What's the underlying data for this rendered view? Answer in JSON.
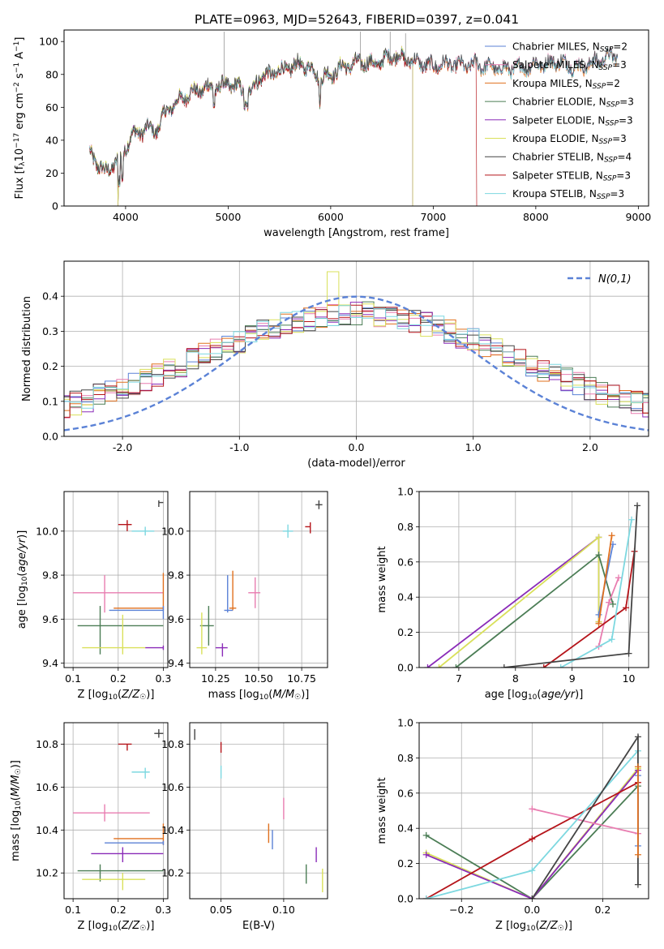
{
  "figure_title": "PLATE=0963, MJD=52643, FIBERID=0397, z=0.041",
  "colors": {
    "Chabrier MILES": "#5b82d6",
    "Salpeter MILES": "#e87db0",
    "Kroupa MILES": "#e0701e",
    "Chabrier ELODIE": "#4b7d55",
    "Salpeter ELODIE": "#8a2bb8",
    "Kroupa ELODIE": "#d9e05a",
    "Chabrier STELIB": "#444444",
    "Salpeter STELIB": "#b5141a",
    "Kroupa STELIB": "#7dd8e0"
  },
  "chart_data": [
    {
      "id": "spectrum",
      "type": "line",
      "xlabel": "wavelength [Angstrom, rest frame]",
      "ylabel": "Flux [f_λ10^-17 erg cm^-2 s^-1 A^-1]",
      "xlim": [
        3400,
        9100
      ],
      "ylim": [
        0,
        107
      ],
      "xticks": [
        4000,
        5000,
        6000,
        7000,
        8000,
        9000
      ],
      "yticks": [
        0,
        20,
        40,
        60,
        80,
        100
      ],
      "grid": false,
      "legend_position": "top-right",
      "legend": [
        {
          "model": "Chabrier MILES",
          "nssp": "2"
        },
        {
          "model": "Salpeter MILES",
          "nssp": "3"
        },
        {
          "model": "Kroupa MILES",
          "nssp": "2"
        },
        {
          "model": "Chabrier ELODIE",
          "nssp": "3"
        },
        {
          "model": "Salpeter ELODIE",
          "nssp": "3"
        },
        {
          "model": "Kroupa ELODIE",
          "nssp": "3"
        },
        {
          "model": "Chabrier STELIB",
          "nssp": "4"
        },
        {
          "model": "Salpeter STELIB",
          "nssp": "3"
        },
        {
          "model": "Kroupa STELIB",
          "nssp": "3"
        }
      ],
      "continuum": [
        [
          3650,
          32
        ],
        [
          3700,
          28
        ],
        [
          3750,
          24
        ],
        [
          3800,
          20
        ],
        [
          3850,
          24
        ],
        [
          3900,
          26
        ],
        [
          3950,
          28
        ],
        [
          4000,
          36
        ],
        [
          4050,
          42
        ],
        [
          4100,
          44
        ],
        [
          4200,
          47
        ],
        [
          4300,
          46
        ],
        [
          4400,
          58
        ],
        [
          4500,
          63
        ],
        [
          4600,
          68
        ],
        [
          4700,
          70
        ],
        [
          4800,
          72
        ],
        [
          4900,
          72
        ],
        [
          5000,
          74
        ],
        [
          5100,
          72
        ],
        [
          5200,
          68
        ],
        [
          5300,
          78
        ],
        [
          5400,
          80
        ],
        [
          5500,
          82
        ],
        [
          5600,
          84
        ],
        [
          5700,
          86
        ],
        [
          5800,
          84
        ],
        [
          5900,
          78
        ],
        [
          6000,
          80
        ],
        [
          6100,
          84
        ],
        [
          6200,
          86
        ],
        [
          6300,
          88
        ],
        [
          6400,
          86
        ],
        [
          6500,
          88
        ],
        [
          6600,
          92
        ],
        [
          6700,
          90
        ],
        [
          6800,
          88
        ],
        [
          6900,
          86
        ],
        [
          7000,
          85
        ],
        [
          7100,
          86
        ],
        [
          7200,
          86
        ],
        [
          7300,
          85
        ],
        [
          7400,
          86
        ],
        [
          7500,
          85
        ],
        [
          7600,
          84
        ],
        [
          7700,
          83
        ],
        [
          7800,
          84
        ],
        [
          7900,
          84
        ],
        [
          8000,
          86
        ],
        [
          8100,
          86
        ],
        [
          8200,
          88
        ],
        [
          8300,
          86
        ],
        [
          8400,
          84
        ],
        [
          8500,
          86
        ],
        [
          8600,
          88
        ],
        [
          8700,
          90
        ],
        [
          8800,
          92
        ]
      ],
      "features": {
        "dip_elodie": [
          3925,
          6795
        ],
        "end_elodie": 6800,
        "end_stelib_red": 7420,
        "emission": [
          [
            4960,
            106
          ],
          [
            6290,
            106
          ],
          [
            6580,
            106
          ],
          [
            6730,
            105
          ]
        ]
      }
    },
    {
      "id": "residuals",
      "type": "histogram",
      "xlabel": "(data-model)/error",
      "ylabel": "Normed distribution",
      "xlim": [
        -2.5,
        2.5
      ],
      "ylim": [
        0,
        0.5
      ],
      "xticks": [
        -2,
        -1,
        0,
        1,
        2
      ],
      "yticks": [
        0.0,
        0.1,
        0.2,
        0.3,
        0.4
      ],
      "grid": true,
      "legend_label": "N(0,1)",
      "legend_position": "top-right",
      "bin_width": 0.1
    },
    {
      "id": "age_Z",
      "type": "scatter",
      "xlabel": "Z [log10(Z/Z☉)]",
      "ylabel": "age  [log10(age/yr)]",
      "xlim": [
        0.08,
        0.31
      ],
      "ylim": [
        9.38,
        10.18
      ],
      "xticks": [
        0.1,
        0.2,
        0.3
      ],
      "yticks": [
        9.4,
        9.6,
        9.8,
        10.0
      ],
      "grid": true,
      "points": [
        {
          "model": "Chabrier STELIB",
          "x": 0.29,
          "y": 10.13,
          "xe": [
            0.29,
            0.3
          ],
          "ye": [
            10.11,
            10.14
          ]
        },
        {
          "model": "Salpeter STELIB",
          "x": 0.22,
          "y": 10.03,
          "xe": [
            0.2,
            0.23
          ],
          "ye": [
            10.0,
            10.05
          ]
        },
        {
          "model": "Kroupa STELIB",
          "x": 0.26,
          "y": 10.0,
          "xe": [
            0.23,
            0.28
          ],
          "ye": [
            9.98,
            10.02
          ]
        },
        {
          "model": "Salpeter MILES",
          "x": 0.17,
          "y": 9.72,
          "xe": [
            0.1,
            0.3
          ],
          "ye": [
            9.63,
            9.8
          ]
        },
        {
          "model": "Kroupa MILES",
          "x": 0.3,
          "y": 9.65,
          "xe": [
            0.19,
            0.3
          ],
          "ye": [
            9.64,
            9.81
          ]
        },
        {
          "model": "Chabrier MILES",
          "x": 0.3,
          "y": 9.64,
          "xe": [
            0.18,
            0.3
          ],
          "ye": [
            9.6,
            9.66
          ]
        },
        {
          "model": "Chabrier ELODIE",
          "x": 0.16,
          "y": 9.57,
          "xe": [
            0.11,
            0.3
          ],
          "ye": [
            9.44,
            9.66
          ]
        },
        {
          "model": "Kroupa ELODIE",
          "x": 0.21,
          "y": 9.47,
          "xe": [
            0.12,
            0.26
          ],
          "ye": [
            9.44,
            9.62
          ]
        },
        {
          "model": "Salpeter ELODIE",
          "x": 0.3,
          "y": 9.47,
          "xe": [
            0.26,
            0.3
          ],
          "ye": [
            9.46,
            9.48
          ]
        }
      ]
    },
    {
      "id": "age_mass",
      "type": "scatter",
      "xlabel": "mass [log10(M/M☉)]",
      "ylabel": "",
      "xlim": [
        10.1,
        10.9
      ],
      "ylim": [
        9.38,
        10.18
      ],
      "xticks": [
        10.25,
        10.5,
        10.75
      ],
      "yticks": [
        9.4,
        9.6,
        9.8,
        10.0
      ],
      "grid": true,
      "points": [
        {
          "model": "Chabrier STELIB",
          "x": 10.85,
          "y": 10.12,
          "xe": [
            10.83,
            10.87
          ],
          "ye": [
            10.1,
            10.14
          ]
        },
        {
          "model": "Salpeter STELIB",
          "x": 10.8,
          "y": 10.02,
          "xe": [
            10.77,
            10.8
          ],
          "ye": [
            9.99,
            10.04
          ]
        },
        {
          "model": "Kroupa STELIB",
          "x": 10.67,
          "y": 10.0,
          "xe": [
            10.64,
            10.7
          ],
          "ye": [
            9.97,
            10.03
          ]
        },
        {
          "model": "Salpeter MILES",
          "x": 10.48,
          "y": 9.72,
          "xe": [
            10.44,
            10.51
          ],
          "ye": [
            9.65,
            9.79
          ]
        },
        {
          "model": "Kroupa MILES",
          "x": 10.35,
          "y": 9.65,
          "xe": [
            10.33,
            10.37
          ],
          "ye": [
            9.64,
            9.82
          ]
        },
        {
          "model": "Chabrier MILES",
          "x": 10.32,
          "y": 9.64,
          "xe": [
            10.3,
            10.35
          ],
          "ye": [
            9.63,
            9.8
          ]
        },
        {
          "model": "Chabrier ELODIE",
          "x": 10.21,
          "y": 9.57,
          "xe": [
            10.16,
            10.24
          ],
          "ye": [
            9.48,
            9.66
          ]
        },
        {
          "model": "Kroupa ELODIE",
          "x": 10.17,
          "y": 9.47,
          "xe": [
            10.14,
            10.2
          ],
          "ye": [
            9.44,
            9.63
          ]
        },
        {
          "model": "Salpeter ELODIE",
          "x": 10.29,
          "y": 9.47,
          "xe": [
            10.25,
            10.32
          ],
          "ye": [
            9.43,
            9.49
          ]
        }
      ]
    },
    {
      "id": "massweight_age",
      "type": "line",
      "xlabel": "age  [log10(age/yr)]",
      "ylabel": "mass weight",
      "xlim": [
        6.3,
        10.35
      ],
      "ylim": [
        0,
        1
      ],
      "xticks": [
        7,
        8,
        9,
        10
      ],
      "yticks": [
        0.0,
        0.2,
        0.4,
        0.6,
        0.8,
        1.0
      ],
      "grid": true,
      "series": [
        {
          "model": "Salpeter ELODIE",
          "x": [
            6.45,
            9.47,
            9.47
          ],
          "y": [
            0.0,
            0.74,
            0.26
          ]
        },
        {
          "model": "Kroupa ELODIE",
          "x": [
            6.65,
            9.47,
            9.47
          ],
          "y": [
            0.0,
            0.74,
            0.26
          ]
        },
        {
          "model": "Chabrier ELODIE",
          "x": [
            6.95,
            9.47,
            9.72
          ],
          "y": [
            0.0,
            0.64,
            0.36
          ]
        },
        {
          "model": "Chabrier MILES",
          "x": [
            9.47,
            9.72
          ],
          "y": [
            0.3,
            0.7
          ]
        },
        {
          "model": "Kroupa MILES",
          "x": [
            9.47,
            9.7
          ],
          "y": [
            0.25,
            0.75
          ]
        },
        {
          "model": "Salpeter MILES",
          "x": [
            9.47,
            9.65,
            9.82
          ],
          "y": [
            0.12,
            0.37,
            0.51
          ]
        },
        {
          "model": "Salpeter STELIB",
          "x": [
            8.5,
            9.95,
            10.1
          ],
          "y": [
            0.0,
            0.34,
            0.66
          ]
        },
        {
          "model": "Kroupa STELIB",
          "x": [
            8.8,
            9.7,
            10.05
          ],
          "y": [
            0.0,
            0.16,
            0.84
          ]
        },
        {
          "model": "Chabrier STELIB",
          "x": [
            7.8,
            10.0,
            10.15
          ],
          "y": [
            0.0,
            0.08,
            0.92
          ]
        }
      ]
    },
    {
      "id": "mass_Z",
      "type": "scatter",
      "xlabel": "Z [log10(Z/Z☉)]",
      "ylabel": "mass [log10(M/M☉)]",
      "xlim": [
        0.08,
        0.31
      ],
      "ylim": [
        10.08,
        10.9
      ],
      "xticks": [
        0.1,
        0.2,
        0.3
      ],
      "yticks": [
        10.2,
        10.4,
        10.6,
        10.8
      ],
      "grid": true,
      "points": [
        {
          "model": "Chabrier STELIB",
          "x": 0.29,
          "y": 10.85,
          "xe": [
            0.28,
            0.3
          ],
          "ye": [
            10.83,
            10.87
          ]
        },
        {
          "model": "Salpeter STELIB",
          "x": 0.22,
          "y": 10.8,
          "xe": [
            0.2,
            0.23
          ],
          "ye": [
            10.77,
            10.8
          ]
        },
        {
          "model": "Kroupa STELIB",
          "x": 0.26,
          "y": 10.67,
          "xe": [
            0.23,
            0.27
          ],
          "ye": [
            10.64,
            10.69
          ]
        },
        {
          "model": "Salpeter MILES",
          "x": 0.17,
          "y": 10.48,
          "xe": [
            0.1,
            0.27
          ],
          "ye": [
            10.44,
            10.52
          ]
        },
        {
          "model": "Kroupa MILES",
          "x": 0.3,
          "y": 10.36,
          "xe": [
            0.19,
            0.3
          ],
          "ye": [
            10.33,
            10.43
          ]
        },
        {
          "model": "Chabrier MILES",
          "x": 0.3,
          "y": 10.34,
          "xe": [
            0.17,
            0.3
          ],
          "ye": [
            10.33,
            10.35
          ]
        },
        {
          "model": "Salpeter ELODIE",
          "x": 0.21,
          "y": 10.29,
          "xe": [
            0.14,
            0.3
          ],
          "ye": [
            10.25,
            10.32
          ]
        },
        {
          "model": "Chabrier ELODIE",
          "x": 0.16,
          "y": 10.21,
          "xe": [
            0.11,
            0.3
          ],
          "ye": [
            10.16,
            10.24
          ]
        },
        {
          "model": "Kroupa ELODIE",
          "x": 0.21,
          "y": 10.17,
          "xe": [
            0.12,
            0.26
          ],
          "ye": [
            10.12,
            10.2
          ]
        }
      ]
    },
    {
      "id": "mass_EBV",
      "type": "scatter",
      "xlabel": "E(B-V)",
      "ylabel": "",
      "xlim": [
        0.025,
        0.135
      ],
      "ylim": [
        10.08,
        10.9
      ],
      "xticks": [
        0.05,
        0.1
      ],
      "yticks": [
        10.2,
        10.4,
        10.6,
        10.8
      ],
      "grid": true,
      "points": [
        {
          "model": "Chabrier STELIB",
          "x": 0.029,
          "y": 10.85,
          "ye": [
            10.82,
            10.87
          ]
        },
        {
          "model": "Salpeter STELIB",
          "x": 0.05,
          "y": 10.78,
          "ye": [
            10.76,
            10.81
          ]
        },
        {
          "model": "Kroupa STELIB",
          "x": 0.05,
          "y": 10.67,
          "ye": [
            10.64,
            10.7
          ]
        },
        {
          "model": "Salpeter MILES",
          "x": 0.1,
          "y": 10.48,
          "ye": [
            10.45,
            10.55
          ]
        },
        {
          "model": "Kroupa MILES",
          "x": 0.088,
          "y": 10.38,
          "ye": [
            10.34,
            10.43
          ]
        },
        {
          "model": "Chabrier MILES",
          "x": 0.091,
          "y": 10.35,
          "ye": [
            10.31,
            10.4
          ]
        },
        {
          "model": "Salpeter ELODIE",
          "x": 0.126,
          "y": 10.29,
          "ye": [
            10.25,
            10.32
          ]
        },
        {
          "model": "Chabrier ELODIE",
          "x": 0.118,
          "y": 10.2,
          "ye": [
            10.15,
            10.24
          ]
        },
        {
          "model": "Kroupa ELODIE",
          "x": 0.131,
          "y": 10.17,
          "ye": [
            10.11,
            10.22
          ]
        }
      ]
    },
    {
      "id": "massweight_Z",
      "type": "line",
      "xlabel": "Z [log10(Z/Z☉)]",
      "ylabel": "mass weight",
      "xlim": [
        -0.32,
        0.33
      ],
      "ylim": [
        0,
        1
      ],
      "xticks": [
        -0.2,
        0.0,
        0.2
      ],
      "yticks": [
        0.0,
        0.2,
        0.4,
        0.6,
        0.8,
        1.0
      ],
      "grid": true,
      "series": [
        {
          "model": "Chabrier ELODIE",
          "x": [
            -0.3,
            0.0,
            0.3
          ],
          "y": [
            0.36,
            0.0,
            0.64
          ]
        },
        {
          "model": "Kroupa ELODIE",
          "x": [
            -0.3,
            0.0,
            0.3
          ],
          "y": [
            0.26,
            0.0,
            0.74
          ]
        },
        {
          "model": "Salpeter ELODIE",
          "x": [
            -0.3,
            0.0,
            0.3
          ],
          "y": [
            0.25,
            0.0,
            0.73
          ]
        },
        {
          "model": "Salpeter MILES",
          "x": [
            0.0,
            0.3
          ],
          "y": [
            0.51,
            0.37
          ]
        },
        {
          "model": "Salpeter STELIB",
          "x": [
            -0.3,
            0.0,
            0.3
          ],
          "y": [
            0.0,
            0.34,
            0.66
          ]
        },
        {
          "model": "Kroupa STELIB",
          "x": [
            -0.3,
            0.0,
            0.3
          ],
          "y": [
            0.0,
            0.16,
            0.84
          ]
        },
        {
          "model": "Chabrier STELIB",
          "x": [
            0.0,
            0.3,
            0.3
          ],
          "y": [
            0.0,
            0.92,
            0.08
          ]
        },
        {
          "model": "Chabrier MILES",
          "x": [
            0.3,
            0.3
          ],
          "y": [
            0.3,
            0.7
          ]
        },
        {
          "model": "Kroupa MILES",
          "x": [
            0.3,
            0.3
          ],
          "y": [
            0.25,
            0.75
          ]
        }
      ]
    }
  ]
}
